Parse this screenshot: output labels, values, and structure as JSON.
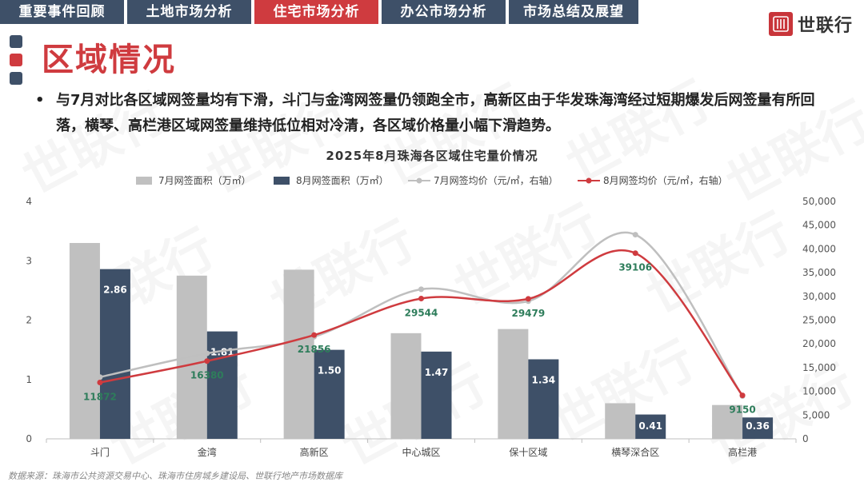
{
  "tabs": [
    {
      "label": "重要事件回顾",
      "active": false
    },
    {
      "label": "土地市场分析",
      "active": false
    },
    {
      "label": "住宅市场分析",
      "active": true
    },
    {
      "label": "办公市场分析",
      "active": false
    },
    {
      "label": "市场总结及展望",
      "active": false
    }
  ],
  "logo": {
    "text": "世联行",
    "icon": "seal-logo-icon"
  },
  "page_title": "区域情况",
  "bullet_text": "与7月对比各区域网签量均有下滑，斗门与金湾网签量仍领跑全市，高新区由于华发珠海湾经过短期爆发后网签量有所回落，横琴、高栏港区域网签量维持低位相对冷清，各区域价格量小幅下滑趋势。",
  "source": "数据来源：珠海市公共资源交易中心、珠海市住房城乡建设局、世联行地产市场数据库",
  "watermark": "世联行",
  "colors": {
    "dark": "#3e5068",
    "red": "#cf3b3f",
    "gray_bar": "#c0c0c0",
    "gray_line": "#bfbfbf",
    "label_green": "#2e7d5b"
  },
  "chart_data": {
    "type": "bar+line",
    "title": "2025年8月珠海各区域住宅量价情况",
    "categories": [
      "斗门",
      "金湾",
      "高新区",
      "中心城区",
      "保十区域",
      "横琴深合区",
      "高栏港"
    ],
    "series": [
      {
        "name": "7月网签面积（万㎡）",
        "type": "bar",
        "axis": "left",
        "color": "#c0c0c0",
        "values": [
          3.3,
          2.75,
          2.85,
          1.78,
          1.85,
          0.6,
          0.57
        ]
      },
      {
        "name": "8月网签面积（万㎡）",
        "type": "bar",
        "axis": "left",
        "color": "#3e5068",
        "values": [
          2.86,
          1.81,
          1.5,
          1.47,
          1.34,
          0.41,
          0.36
        ],
        "labels": [
          "2.86",
          "1.81",
          "1.50",
          "1.47",
          "1.34",
          "0.41",
          "0.36"
        ]
      },
      {
        "name": "7月网签均价（元/㎡，右轴）",
        "type": "line",
        "axis": "right",
        "color": "#bfbfbf",
        "values": [
          13000,
          18000,
          21500,
          31500,
          29000,
          43000,
          9000
        ]
      },
      {
        "name": "8月网签均价（元/㎡，右轴）",
        "type": "line",
        "axis": "right",
        "color": "#cf3b3f",
        "values": [
          11872,
          16380,
          21856,
          29544,
          29479,
          39106,
          9150
        ],
        "labels": [
          "11872",
          "16380",
          "21856",
          "29544",
          "29479",
          "39106",
          "9150"
        ]
      }
    ],
    "y_left": {
      "min": 0,
      "max": 4,
      "ticks": [
        "0",
        "1",
        "2",
        "3",
        "4"
      ]
    },
    "y_right": {
      "min": 0,
      "max": 50000,
      "ticks": [
        "0",
        "5,000",
        "10,000",
        "15,000",
        "20,000",
        "25,000",
        "30,000",
        "35,000",
        "40,000",
        "45,000",
        "50,000"
      ]
    },
    "legend_position": "top",
    "grid": false
  }
}
